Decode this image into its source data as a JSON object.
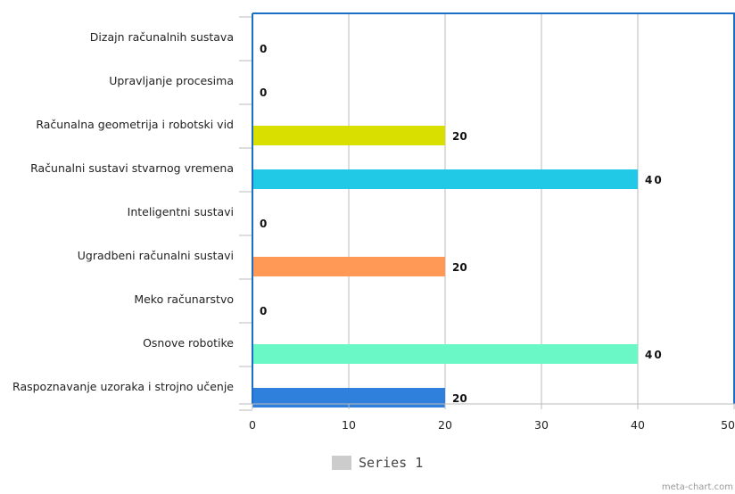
{
  "chart_data": {
    "type": "bar",
    "orientation": "horizontal",
    "categories": [
      "Dizajn računalnih sustava",
      "Upravljanje procesima",
      "Računalna geometrija i robotski vid",
      "Računalni sustavi stvarnog vremena",
      "Inteligentni sustavi",
      "Ugradbeni računalni sustavi",
      "Meko računarstvo",
      "Osnove robotike",
      "Raspoznavanje uzoraka i strojno učenje"
    ],
    "series": [
      {
        "name": "Series 1",
        "values": [
          0,
          0,
          20,
          40,
          0,
          20,
          0,
          40,
          20
        ]
      }
    ],
    "value_labels": [
      "0",
      "0",
      "20",
      "40",
      "0",
      "20",
      "0",
      "40",
      "20"
    ],
    "bar_colors": [
      "#e6e62e",
      "#1ea7ce",
      "#d9e000",
      "#22c9e6",
      "#2d7fe0",
      "#ff9955",
      "#999999",
      "#69f8c6",
      "#2f80dd"
    ],
    "xlim": [
      0,
      50
    ],
    "xticks": [
      "0",
      "10",
      "20",
      "30",
      "40",
      "50"
    ],
    "grid": true,
    "legend_position": "bottom",
    "title": "",
    "xlabel": "",
    "ylabel": ""
  },
  "watermark": "meta-chart.com",
  "colors": {
    "axis": "#1a6fc4",
    "grid": "#bbbbbb",
    "legend_swatch": "#cccccc"
  }
}
